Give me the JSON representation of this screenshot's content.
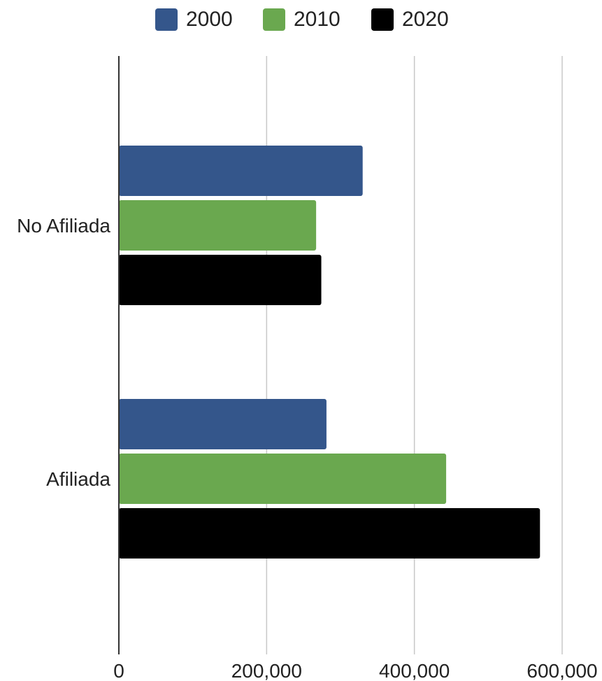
{
  "chart_data": {
    "type": "bar",
    "orientation": "horizontal",
    "categories": [
      "No Afiliada",
      "Afiliada"
    ],
    "series": [
      {
        "name": "2000",
        "color": "#34568b",
        "values": [
          330000,
          281000
        ]
      },
      {
        "name": "2010",
        "color": "#6aa84f",
        "values": [
          267000,
          443000
        ]
      },
      {
        "name": "2020",
        "color": "#000000",
        "values": [
          274000,
          570000
        ]
      }
    ],
    "x_ticks": [
      "0",
      "200,000",
      "400,000",
      "600,000"
    ],
    "xlim": [
      0,
      600000
    ],
    "grid": true,
    "legend_position": "top",
    "title": "",
    "xlabel": "",
    "ylabel": ""
  }
}
